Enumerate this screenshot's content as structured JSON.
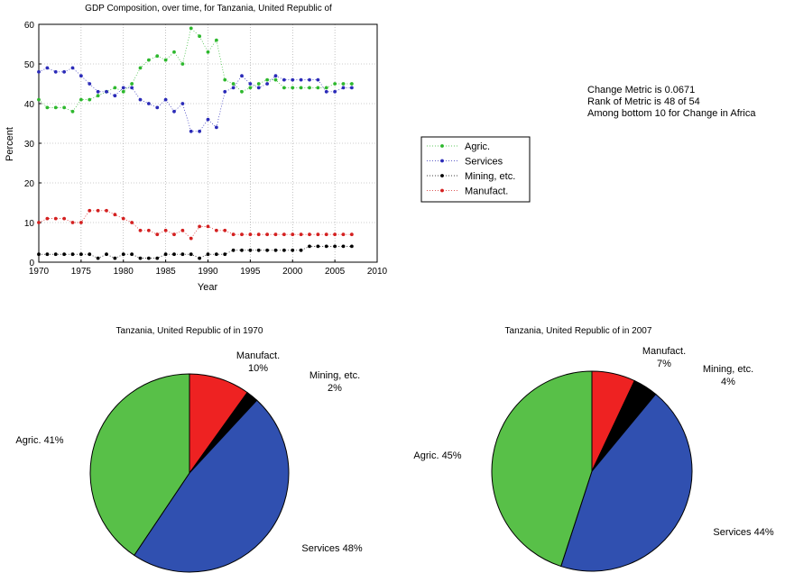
{
  "info": [
    "Change Metric is 0.0671",
    "Rank of Metric is 48  of 54",
    "Among bottom 10 for Change in Africa"
  ],
  "chart_data": [
    {
      "type": "line",
      "title": "GDP Composition, over time, for Tanzania, United Republic of",
      "xlabel": "Year",
      "ylabel": "Percent",
      "xlim": [
        1970,
        2010
      ],
      "ylim": [
        0,
        60
      ],
      "xticks": [
        1970,
        1975,
        1980,
        1985,
        1990,
        1995,
        2000,
        2005,
        2010
      ],
      "yticks": [
        0,
        10,
        20,
        30,
        40,
        50,
        60
      ],
      "grid": true,
      "legend_position": "right",
      "x": [
        1970,
        1971,
        1972,
        1973,
        1974,
        1975,
        1976,
        1977,
        1978,
        1979,
        1980,
        1981,
        1982,
        1983,
        1984,
        1985,
        1986,
        1987,
        1988,
        1989,
        1990,
        1991,
        1992,
        1993,
        1994,
        1995,
        1996,
        1997,
        1998,
        1999,
        2000,
        2001,
        2002,
        2003,
        2004,
        2005,
        2006,
        2007
      ],
      "series": [
        {
          "name": "Agric.",
          "color": "#2db82d",
          "values": [
            41,
            39,
            39,
            39,
            38,
            41,
            41,
            42,
            43,
            44,
            43,
            45,
            49,
            51,
            52,
            51,
            53,
            50,
            59,
            57,
            53,
            56,
            46,
            45,
            43,
            44,
            45,
            46,
            46,
            44,
            44,
            44,
            44,
            44,
            44,
            45,
            45,
            45
          ]
        },
        {
          "name": "Services",
          "color": "#2b2bb8",
          "values": [
            48,
            49,
            48,
            48,
            49,
            47,
            45,
            43,
            43,
            42,
            44,
            44,
            41,
            40,
            39,
            41,
            38,
            40,
            33,
            33,
            36,
            34,
            43,
            44,
            47,
            45,
            44,
            45,
            47,
            46,
            46,
            46,
            46,
            46,
            43,
            43,
            44,
            44
          ]
        },
        {
          "name": "Mining, etc.",
          "color": "#000000",
          "values": [
            2,
            2,
            2,
            2,
            2,
            2,
            2,
            1,
            2,
            1,
            2,
            2,
            1,
            1,
            1,
            2,
            2,
            2,
            2,
            1,
            2,
            2,
            2,
            3,
            3,
            3,
            3,
            3,
            3,
            3,
            3,
            3,
            4,
            4,
            4,
            4,
            4,
            4
          ]
        },
        {
          "name": "Manufact.",
          "color": "#d42020",
          "values": [
            10,
            11,
            11,
            11,
            10,
            10,
            13,
            13,
            13,
            12,
            11,
            10,
            8,
            8,
            7,
            8,
            7,
            8,
            6,
            9,
            9,
            8,
            8,
            7,
            7,
            7,
            7,
            7,
            7,
            7,
            7,
            7,
            7,
            7,
            7,
            7,
            7,
            7
          ]
        }
      ]
    },
    {
      "type": "pie",
      "title": "Tanzania, United Republic of    in  1970",
      "slices": [
        {
          "name": "Manufact.",
          "value": 10,
          "label": "10%",
          "color": "#ee2222"
        },
        {
          "name": "Mining, etc.",
          "value": 2,
          "label": "2%",
          "color": "#000000"
        },
        {
          "name": "Services",
          "value": 48,
          "label": "48%",
          "color": "#3050b0"
        },
        {
          "name": "Agric.",
          "value": 41,
          "label": "41%",
          "color": "#58c048"
        }
      ]
    },
    {
      "type": "pie",
      "title": "Tanzania, United Republic of    in  2007",
      "slices": [
        {
          "name": "Manufact.",
          "value": 7,
          "label": "7%",
          "color": "#ee2222"
        },
        {
          "name": "Mining, etc.",
          "value": 4,
          "label": "4%",
          "color": "#000000"
        },
        {
          "name": "Services",
          "value": 44,
          "label": "44%",
          "color": "#3050b0"
        },
        {
          "name": "Agric.",
          "value": 45,
          "label": "45%",
          "color": "#58c048"
        }
      ]
    }
  ]
}
